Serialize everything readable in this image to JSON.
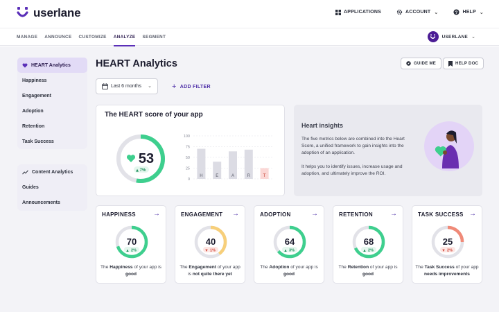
{
  "brand": {
    "name": "userlane",
    "color": "#5a2fb8"
  },
  "topnav": {
    "applications": "APPLICATIONS",
    "account": "ACCOUNT",
    "help": "HELP"
  },
  "subnav": {
    "items": [
      "MANAGE",
      "ANNOUNCE",
      "CUSTOMIZE",
      "ANALYZE",
      "SEGMENT"
    ],
    "active": "ANALYZE",
    "user": "USERLANE"
  },
  "sidebar": {
    "heart": [
      "HEART Analytics",
      "Happiness",
      "Engagement",
      "Adoption",
      "Retention",
      "Task Success"
    ],
    "content": [
      "Content Analytics",
      "Guides",
      "Announcements"
    ]
  },
  "header": {
    "title": "HEART Analytics",
    "guide_me": "GUIDE ME",
    "help_doc": "HELP DOC"
  },
  "filters": {
    "date_range": "Last 6 months",
    "add_filter": "ADD FILTER"
  },
  "score_card": {
    "title": "The HEART score of your app",
    "score": "53",
    "score_value": 53,
    "delta": "7%",
    "color": "#3ecf8e"
  },
  "chart_data": {
    "type": "bar",
    "categories": [
      "H",
      "E",
      "A",
      "R",
      "T"
    ],
    "values": [
      70,
      40,
      64,
      68,
      25
    ],
    "ylim": [
      0,
      100
    ],
    "yticks": [
      0,
      25,
      50,
      75,
      100
    ],
    "highlight": "T",
    "colors": {
      "normal": "#dcdce4",
      "highlight": "#fbd7d5"
    }
  },
  "insights": {
    "title": "Heart insights",
    "p1": "The five metrics below are combined into the Heart Score, a unified framework to gain insights into the adoption of an application.",
    "p2": "It helps you to identify issues, increase usage and adoption, and ultimately improve the ROI."
  },
  "metrics": [
    {
      "label": "HAPPINESS",
      "score": "70",
      "value": 70,
      "delta": "2%",
      "trend": "up",
      "color": "#3ecf8e",
      "desc_pre": "The ",
      "desc_name": "Happiness",
      "desc_mid": " of your app is ",
      "desc_status": "good"
    },
    {
      "label": "ENGAGEMENT",
      "score": "40",
      "value": 40,
      "delta": "1%",
      "trend": "down",
      "color": "#f7cf7a",
      "desc_pre": "The ",
      "desc_name": "Engagement",
      "desc_mid": " of your app is ",
      "desc_status": "not quite there yet"
    },
    {
      "label": "ADOPTION",
      "score": "64",
      "value": 64,
      "delta": "3%",
      "trend": "up",
      "color": "#3ecf8e",
      "desc_pre": "The ",
      "desc_name": "Adoption",
      "desc_mid": " of your app is ",
      "desc_status": "good"
    },
    {
      "label": "RETENTION",
      "score": "68",
      "value": 68,
      "delta": "2%",
      "trend": "up",
      "color": "#3ecf8e",
      "desc_pre": "The ",
      "desc_name": "Retention",
      "desc_mid": " of your app is ",
      "desc_status": "good"
    },
    {
      "label": "TASK SUCCESS",
      "score": "25",
      "value": 25,
      "delta": "2%",
      "trend": "down",
      "color": "#f08a78",
      "desc_pre": "The ",
      "desc_name": "Task Success",
      "desc_mid": " of your app ",
      "desc_status": "needs improvements"
    }
  ]
}
